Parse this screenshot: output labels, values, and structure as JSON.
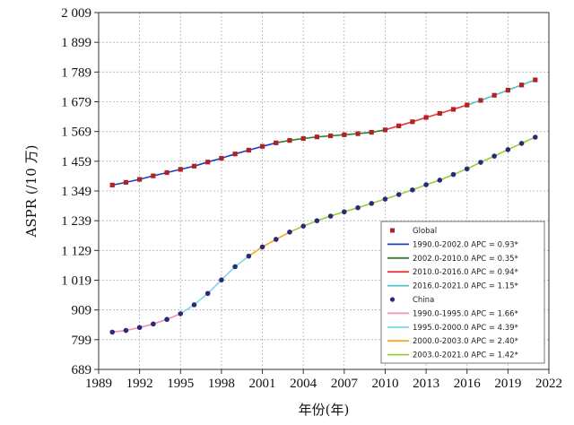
{
  "chart_data": {
    "type": "line",
    "xlabel": "年份(年)",
    "ylabel": "ASPR (/10 万)",
    "xlim": [
      1989,
      2022
    ],
    "ylim": [
      689,
      2009
    ],
    "x_ticks": [
      1989,
      1992,
      1995,
      1998,
      2001,
      2004,
      2007,
      2010,
      2013,
      2016,
      2019,
      2022
    ],
    "y_ticks": [
      689,
      799,
      909,
      1019,
      1129,
      1239,
      1349,
      1459,
      1569,
      1679,
      1789,
      1899,
      2009
    ],
    "x_tick_labels": [
      "1989",
      "1992",
      "1995",
      "1998",
      "2001",
      "2004",
      "2007",
      "2010",
      "2013",
      "2016",
      "2019",
      "2022"
    ],
    "y_tick_labels": [
      "689",
      "799",
      "909",
      "1 019",
      "1 129",
      "1 239",
      "1 349",
      "1 459",
      "1 569",
      "1 679",
      "1 789",
      "1 899",
      "2 009"
    ],
    "grid": true,
    "legend_position": "bottom-right",
    "years": [
      1990,
      1991,
      1992,
      1993,
      1994,
      1995,
      1996,
      1997,
      1998,
      1999,
      2000,
      2001,
      2002,
      2003,
      2004,
      2005,
      2006,
      2007,
      2008,
      2009,
      2010,
      2011,
      2012,
      2013,
      2014,
      2015,
      2016,
      2017,
      2018,
      2019,
      2020,
      2021
    ],
    "series": [
      {
        "name": "Global",
        "color": "#b22222",
        "values": [
          1371,
          1381,
          1392,
          1405,
          1417,
          1429,
          1441,
          1456,
          1470,
          1486,
          1500,
          1514,
          1527,
          1536,
          1543,
          1549,
          1553,
          1557,
          1561,
          1566,
          1575,
          1590,
          1605,
          1621,
          1636,
          1651,
          1667,
          1684,
          1703,
          1722,
          1741,
          1760
        ]
      },
      {
        "name": "China",
        "color": "#2a2a7a",
        "values": [
          827,
          833,
          844,
          857,
          874,
          895,
          928,
          970,
          1020,
          1069,
          1108,
          1142,
          1170,
          1197,
          1219,
          1239,
          1256,
          1272,
          1287,
          1303,
          1319,
          1336,
          1353,
          1372,
          1389,
          1410,
          1431,
          1455,
          1478,
          1502,
          1525,
          1548
        ]
      }
    ],
    "segments": [
      {
        "label": "1990.0-2002.0 APC = 0.93*",
        "series": "Global",
        "from": 1990,
        "to": 2002,
        "color": "#1f3fbf"
      },
      {
        "label": "2002.0-2010.0 APC = 0.35*",
        "series": "Global",
        "from": 2002,
        "to": 2010,
        "color": "#2e7d32"
      },
      {
        "label": "2010.0-2016.0 APC = 0.94*",
        "series": "Global",
        "from": 2010,
        "to": 2016,
        "color": "#e53935"
      },
      {
        "label": "2016.0-2021.0 APC = 1.15*",
        "series": "Global",
        "from": 2016,
        "to": 2021,
        "color": "#4fc3c3"
      },
      {
        "label": "1990.0-1995.0 APC = 1.66*",
        "series": "China",
        "from": 1990,
        "to": 1995,
        "color": "#f48fb1"
      },
      {
        "label": "1995.0-2000.0 APC = 4.39*",
        "series": "China",
        "from": 1995,
        "to": 2000,
        "color": "#7fd6e6"
      },
      {
        "label": "2000.0-2003.0 APC = 2.40*",
        "series": "China",
        "from": 2000,
        "to": 2003,
        "color": "#f5a623"
      },
      {
        "label": "2003.0-2021.0 APC = 1.42*",
        "series": "China",
        "from": 2003,
        "to": 2021,
        "color": "#9ccc3c"
      }
    ]
  }
}
